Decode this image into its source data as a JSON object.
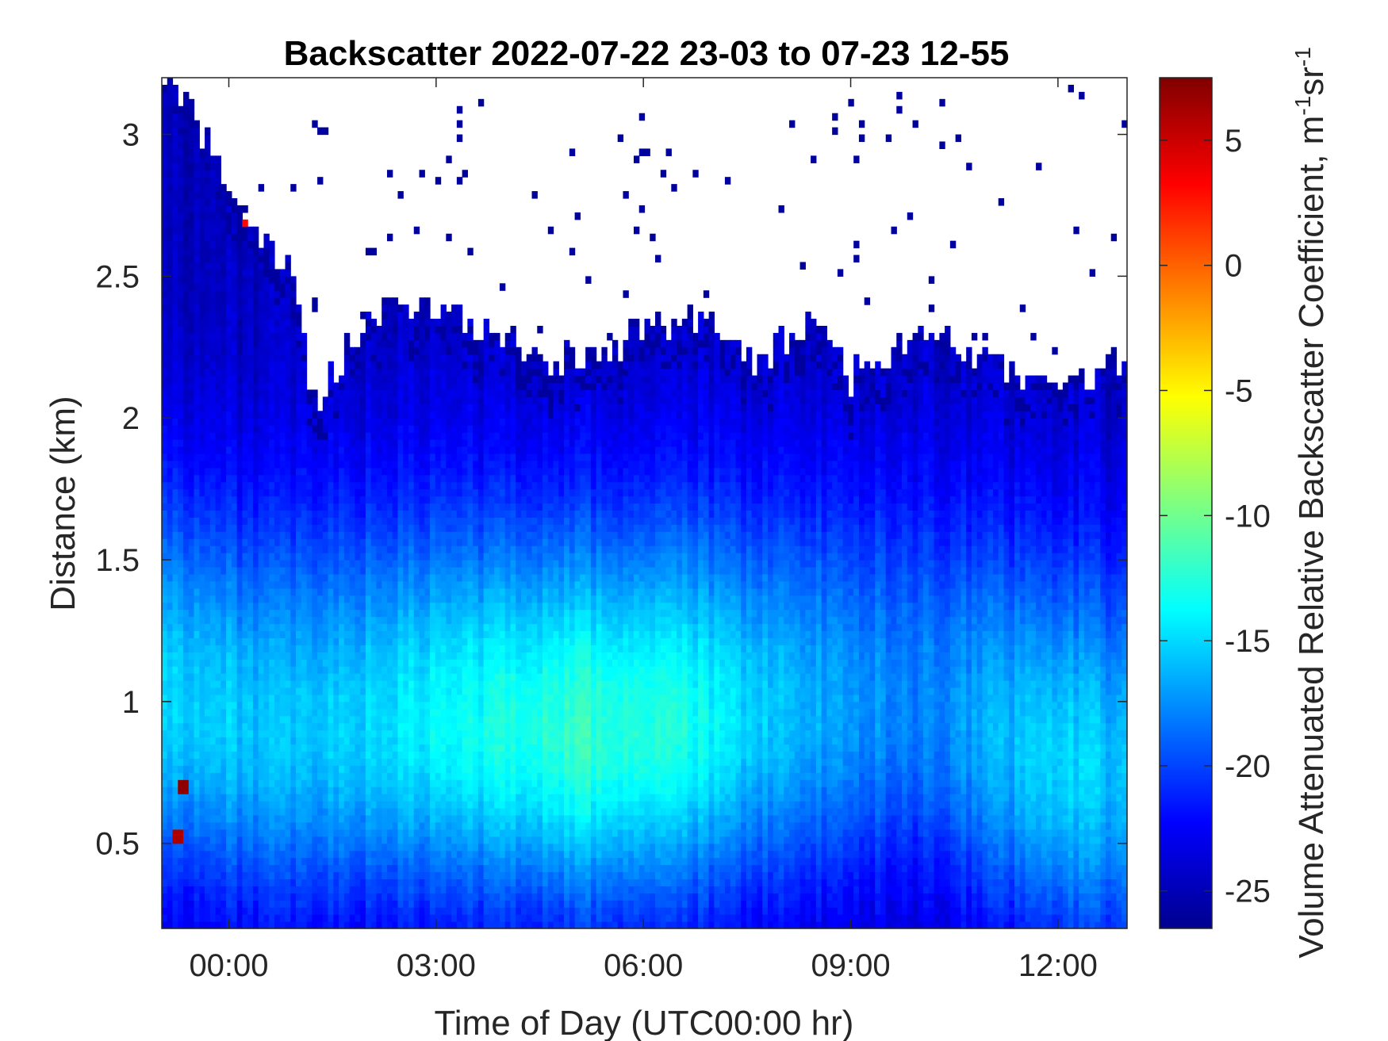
{
  "chart_data": {
    "type": "heatmap",
    "title": "Backscatter 2022-07-22 23-03 to 07-23 12-55",
    "xlabel": "Time of Day (UTC00:00 hr)",
    "ylabel": "Distance (km)",
    "colorbar_label": "Volume Attenuated Relative Backscatter Coefficient, m",
    "colorbar_label_units": {
      "m": "m",
      "m_exp": "-1",
      "sr": "sr",
      "sr_exp": "-1"
    },
    "x_range_hours": [
      -0.97,
      13.0
    ],
    "ylim": [
      0.2,
      3.2
    ],
    "clim": [
      -26.5,
      7.5
    ],
    "colormap": "jet",
    "x_ticks": [
      {
        "value": 0,
        "label": "00:00"
      },
      {
        "value": 3,
        "label": "03:00"
      },
      {
        "value": 6,
        "label": "06:00"
      },
      {
        "value": 9,
        "label": "09:00"
      },
      {
        "value": 12,
        "label": "12:00"
      }
    ],
    "y_ticks": [
      {
        "value": 0.5,
        "label": "0.5"
      },
      {
        "value": 1,
        "label": "1"
      },
      {
        "value": 1.5,
        "label": "1.5"
      },
      {
        "value": 2,
        "label": "2"
      },
      {
        "value": 2.5,
        "label": "2.5"
      },
      {
        "value": 3,
        "label": "3"
      }
    ],
    "c_ticks": [
      {
        "value": -25,
        "label": "-25"
      },
      {
        "value": -20,
        "label": "-20"
      },
      {
        "value": -15,
        "label": "-15"
      },
      {
        "value": -10,
        "label": "-10"
      },
      {
        "value": -5,
        "label": "-5"
      },
      {
        "value": 0,
        "label": "0"
      },
      {
        "value": 5,
        "label": "5"
      }
    ],
    "layers": [
      {
        "name": "aerosol boundary layer",
        "center_km": [
          [
            -0.9,
            1.0
          ],
          [
            0.5,
            0.9
          ],
          [
            3,
            0.92
          ],
          [
            5.5,
            0.88
          ],
          [
            8,
            0.95
          ],
          [
            10,
            1.0
          ],
          [
            11.8,
            0.8
          ],
          [
            13,
            0.75
          ]
        ],
        "peak_value": [
          [
            -0.9,
            -15
          ],
          [
            1,
            -16
          ],
          [
            3,
            -14
          ],
          [
            5,
            -12
          ],
          [
            6.5,
            -13
          ],
          [
            8,
            -16
          ],
          [
            10,
            -18
          ],
          [
            12,
            -15
          ],
          [
            13,
            -16
          ]
        ]
      },
      {
        "name": "signal top",
        "top_km": [
          [
            -0.9,
            3.2
          ],
          [
            0.3,
            2.7
          ],
          [
            1.0,
            2.45
          ],
          [
            1.2,
            2.05
          ],
          [
            2,
            2.35
          ],
          [
            3,
            2.4
          ],
          [
            4,
            2.25
          ],
          [
            5,
            2.2
          ],
          [
            6,
            2.3
          ],
          [
            7,
            2.35
          ],
          [
            7.5,
            2.2
          ],
          [
            8,
            2.25
          ],
          [
            8.5,
            2.35
          ],
          [
            9,
            2.15
          ],
          [
            10,
            2.3
          ],
          [
            11,
            2.2
          ],
          [
            12,
            2.1
          ],
          [
            13,
            2.2
          ]
        ]
      }
    ],
    "hot_spots": [
      {
        "time_hr": -0.75,
        "km": 0.52,
        "value": 6
      },
      {
        "time_hr": -0.68,
        "km": 0.7,
        "value": 7
      },
      {
        "time_hr": 0.25,
        "km": 2.7,
        "value": 3
      }
    ]
  }
}
